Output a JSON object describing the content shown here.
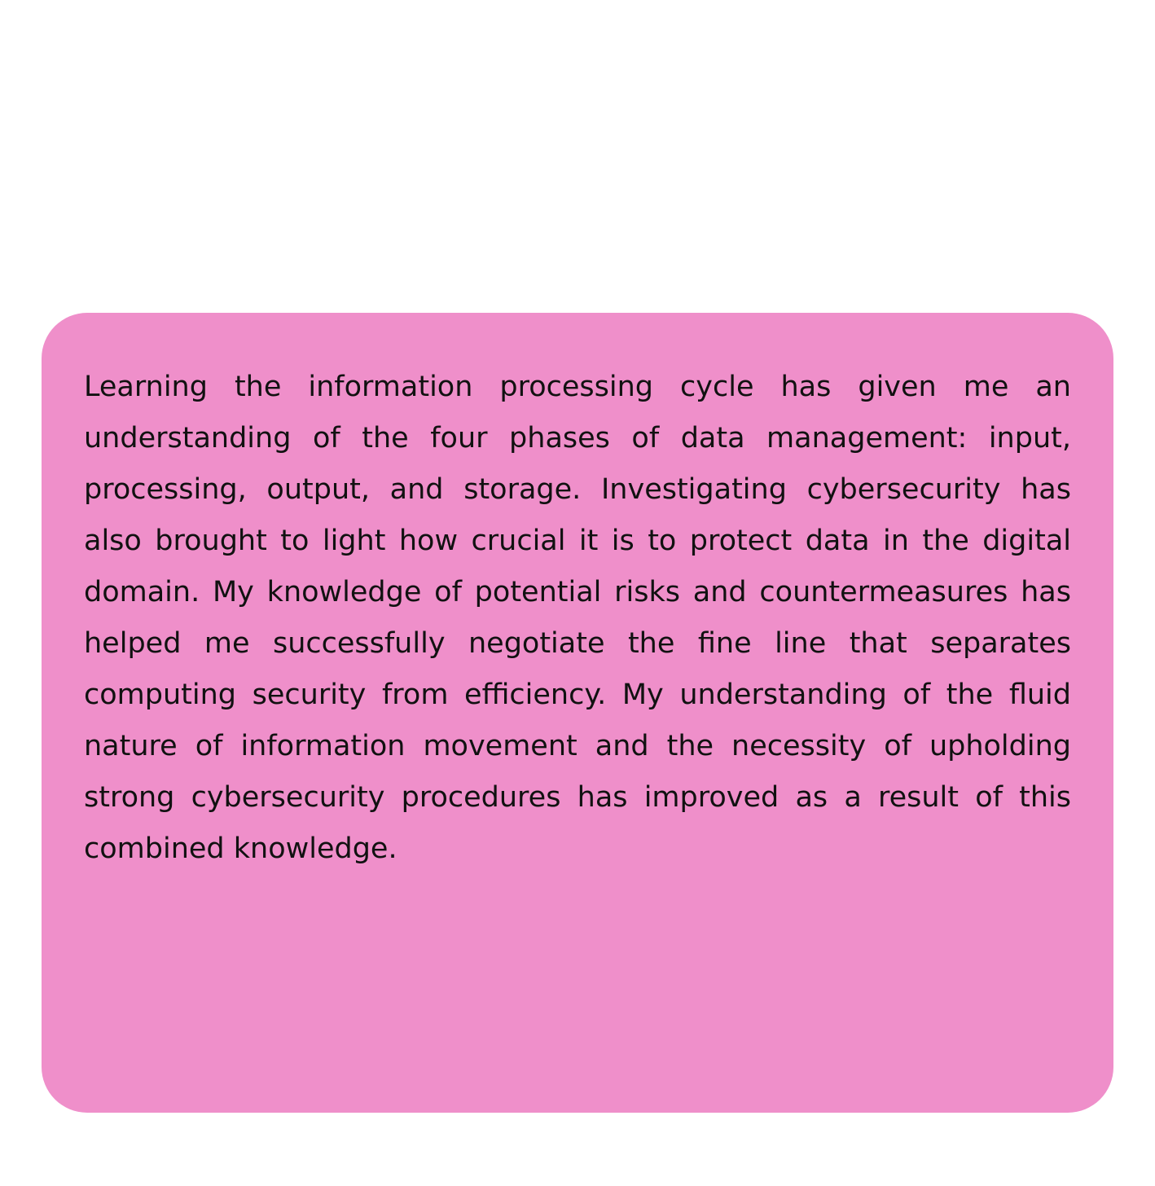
{
  "card": {
    "background_color": "#ef8fca",
    "text_color": "#111111",
    "paragraph": "Learning the information processing cycle has given me an understanding of the four phases of data management: input, processing, output, and storage. Investigating cybersecurity has also brought to light how crucial it is to protect data in the digital domain. My knowledge of potential risks and countermeasures has helped me successfully negotiate the fine line that separates computing security from efficiency. My understanding of the fluid nature of information movement and the necessity of upholding strong cybersecurity procedures has improved as a result of this combined knowledge."
  }
}
